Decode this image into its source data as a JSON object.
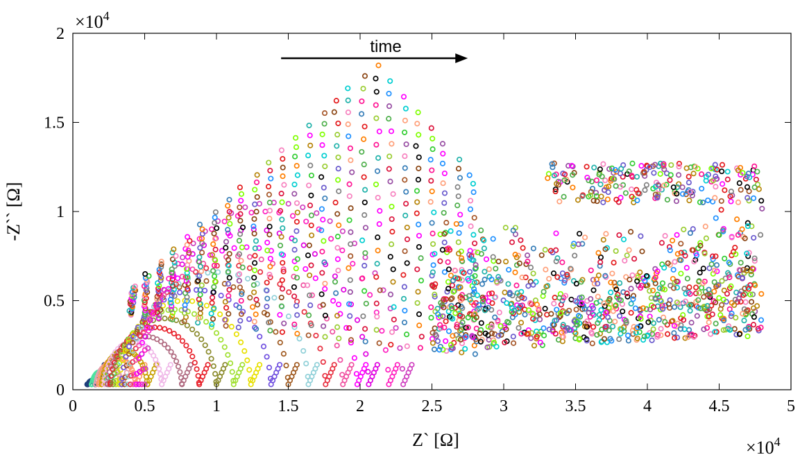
{
  "chart_data": {
    "type": "scatter",
    "xlabel": "Z` [Ω]",
    "ylabel": "-Z`` [Ω]",
    "x_multiplier": "×10",
    "x_exponent": "4",
    "y_multiplier": "×10",
    "y_exponent": "4",
    "xlim": [
      0,
      5
    ],
    "ylim": [
      0,
      2
    ],
    "x_ticks": [
      0,
      0.5,
      1,
      1.5,
      2,
      2.5,
      3,
      3.5,
      4,
      4.5,
      5
    ],
    "x_tick_labels": [
      "0",
      "0.5",
      "1",
      "1.5",
      "2",
      "2.5",
      "3",
      "3.5",
      "4",
      "4.5",
      "5"
    ],
    "y_ticks": [
      0,
      0.5,
      1,
      1.5,
      2
    ],
    "y_tick_labels": [
      "0",
      "0.5",
      "1",
      "1.5",
      "2"
    ],
    "grid": false,
    "marker": "open-circle",
    "annotation": {
      "text": "time",
      "arrow_from": [
        1.45,
        1.86
      ],
      "arrow_to": [
        2.75,
        1.86
      ]
    },
    "palette": [
      "#e41a1c",
      "#377eb8",
      "#4daf4a",
      "#984ea3",
      "#ff7f00",
      "#a65628",
      "#f781bf",
      "#00ced1",
      "#ff00ff",
      "#7fff00",
      "#8b4513",
      "#1e90ff",
      "#ff1493",
      "#32cd32",
      "#000000",
      "#808080",
      "#9acd32",
      "#dc143c",
      "#6a5acd",
      "#20b2aa",
      "#ffa07a",
      "#b8860b"
    ],
    "series": [
      {
        "kind": "arc",
        "start": 0.1,
        "end": 0.16,
        "peak": 0.05,
        "color": "#1f3f7a"
      },
      {
        "kind": "arc",
        "start": 0.13,
        "end": 0.25,
        "peak": 0.1,
        "color": "#4de3a0"
      },
      {
        "kind": "arc",
        "start": 0.16,
        "end": 0.34,
        "peak": 0.14,
        "color": "#e6a0b0"
      },
      {
        "kind": "arc",
        "start": 0.18,
        "end": 0.44,
        "peak": 0.18,
        "color": "#ff9a66"
      },
      {
        "kind": "arc",
        "start": 0.2,
        "end": 0.52,
        "peak": 0.22,
        "color": "#c8a000"
      },
      {
        "kind": "arc",
        "start": 0.22,
        "end": 0.62,
        "peak": 0.27,
        "color": "#f0b8e8"
      },
      {
        "kind": "arc",
        "start": 0.24,
        "end": 0.76,
        "peak": 0.3,
        "color": "#b06a80"
      },
      {
        "kind": "arc",
        "start": 0.26,
        "end": 0.88,
        "peak": 0.35,
        "color": "#e8202a"
      },
      {
        "kind": "arc",
        "start": 0.28,
        "end": 1.0,
        "peak": 0.4,
        "color": "#8a8a2a"
      },
      {
        "kind": "arc",
        "start": 0.3,
        "end": 1.12,
        "peak": 0.45,
        "color": "#a0e030"
      },
      {
        "kind": "arc",
        "start": 0.32,
        "end": 1.24,
        "peak": 0.5,
        "color": "#e8e000"
      },
      {
        "kind": "arc",
        "start": 0.34,
        "end": 1.38,
        "peak": 0.56,
        "color": "#7050e0"
      },
      {
        "kind": "arc",
        "start": 0.36,
        "end": 1.5,
        "peak": 0.61,
        "color": "#a05a20"
      },
      {
        "kind": "arc",
        "start": 0.38,
        "end": 1.64,
        "peak": 0.66,
        "color": "#90d0d8"
      },
      {
        "kind": "arc",
        "start": 0.4,
        "end": 1.76,
        "peak": 0.7,
        "color": "#e83040"
      },
      {
        "kind": "arc",
        "start": 0.42,
        "end": 1.88,
        "peak": 0.75,
        "color": "#f050a0"
      },
      {
        "kind": "arc",
        "start": 0.44,
        "end": 1.98,
        "peak": 0.8,
        "color": "#ff00ff"
      },
      {
        "kind": "arc",
        "start": 0.46,
        "end": 2.06,
        "peak": 0.9,
        "color": "#e000e0"
      },
      {
        "kind": "arc",
        "start": 0.48,
        "end": 2.2,
        "peak": 1.0,
        "color": "#ff20c0"
      },
      {
        "kind": "arc",
        "start": 0.5,
        "end": 2.3,
        "peak": 1.05,
        "color": "#d040c0"
      },
      {
        "kind": "outer",
        "count": 26,
        "x_start": 0.4,
        "x_end": 2.8,
        "y_min_start": 0.42,
        "y_min_end": 0.2,
        "y_max_start": 0.58,
        "y_max_end": 1.82
      },
      {
        "kind": "cloud",
        "x_range": [
          2.5,
          4.8
        ],
        "y_range": [
          0.2,
          1.32
        ]
      }
    ]
  }
}
